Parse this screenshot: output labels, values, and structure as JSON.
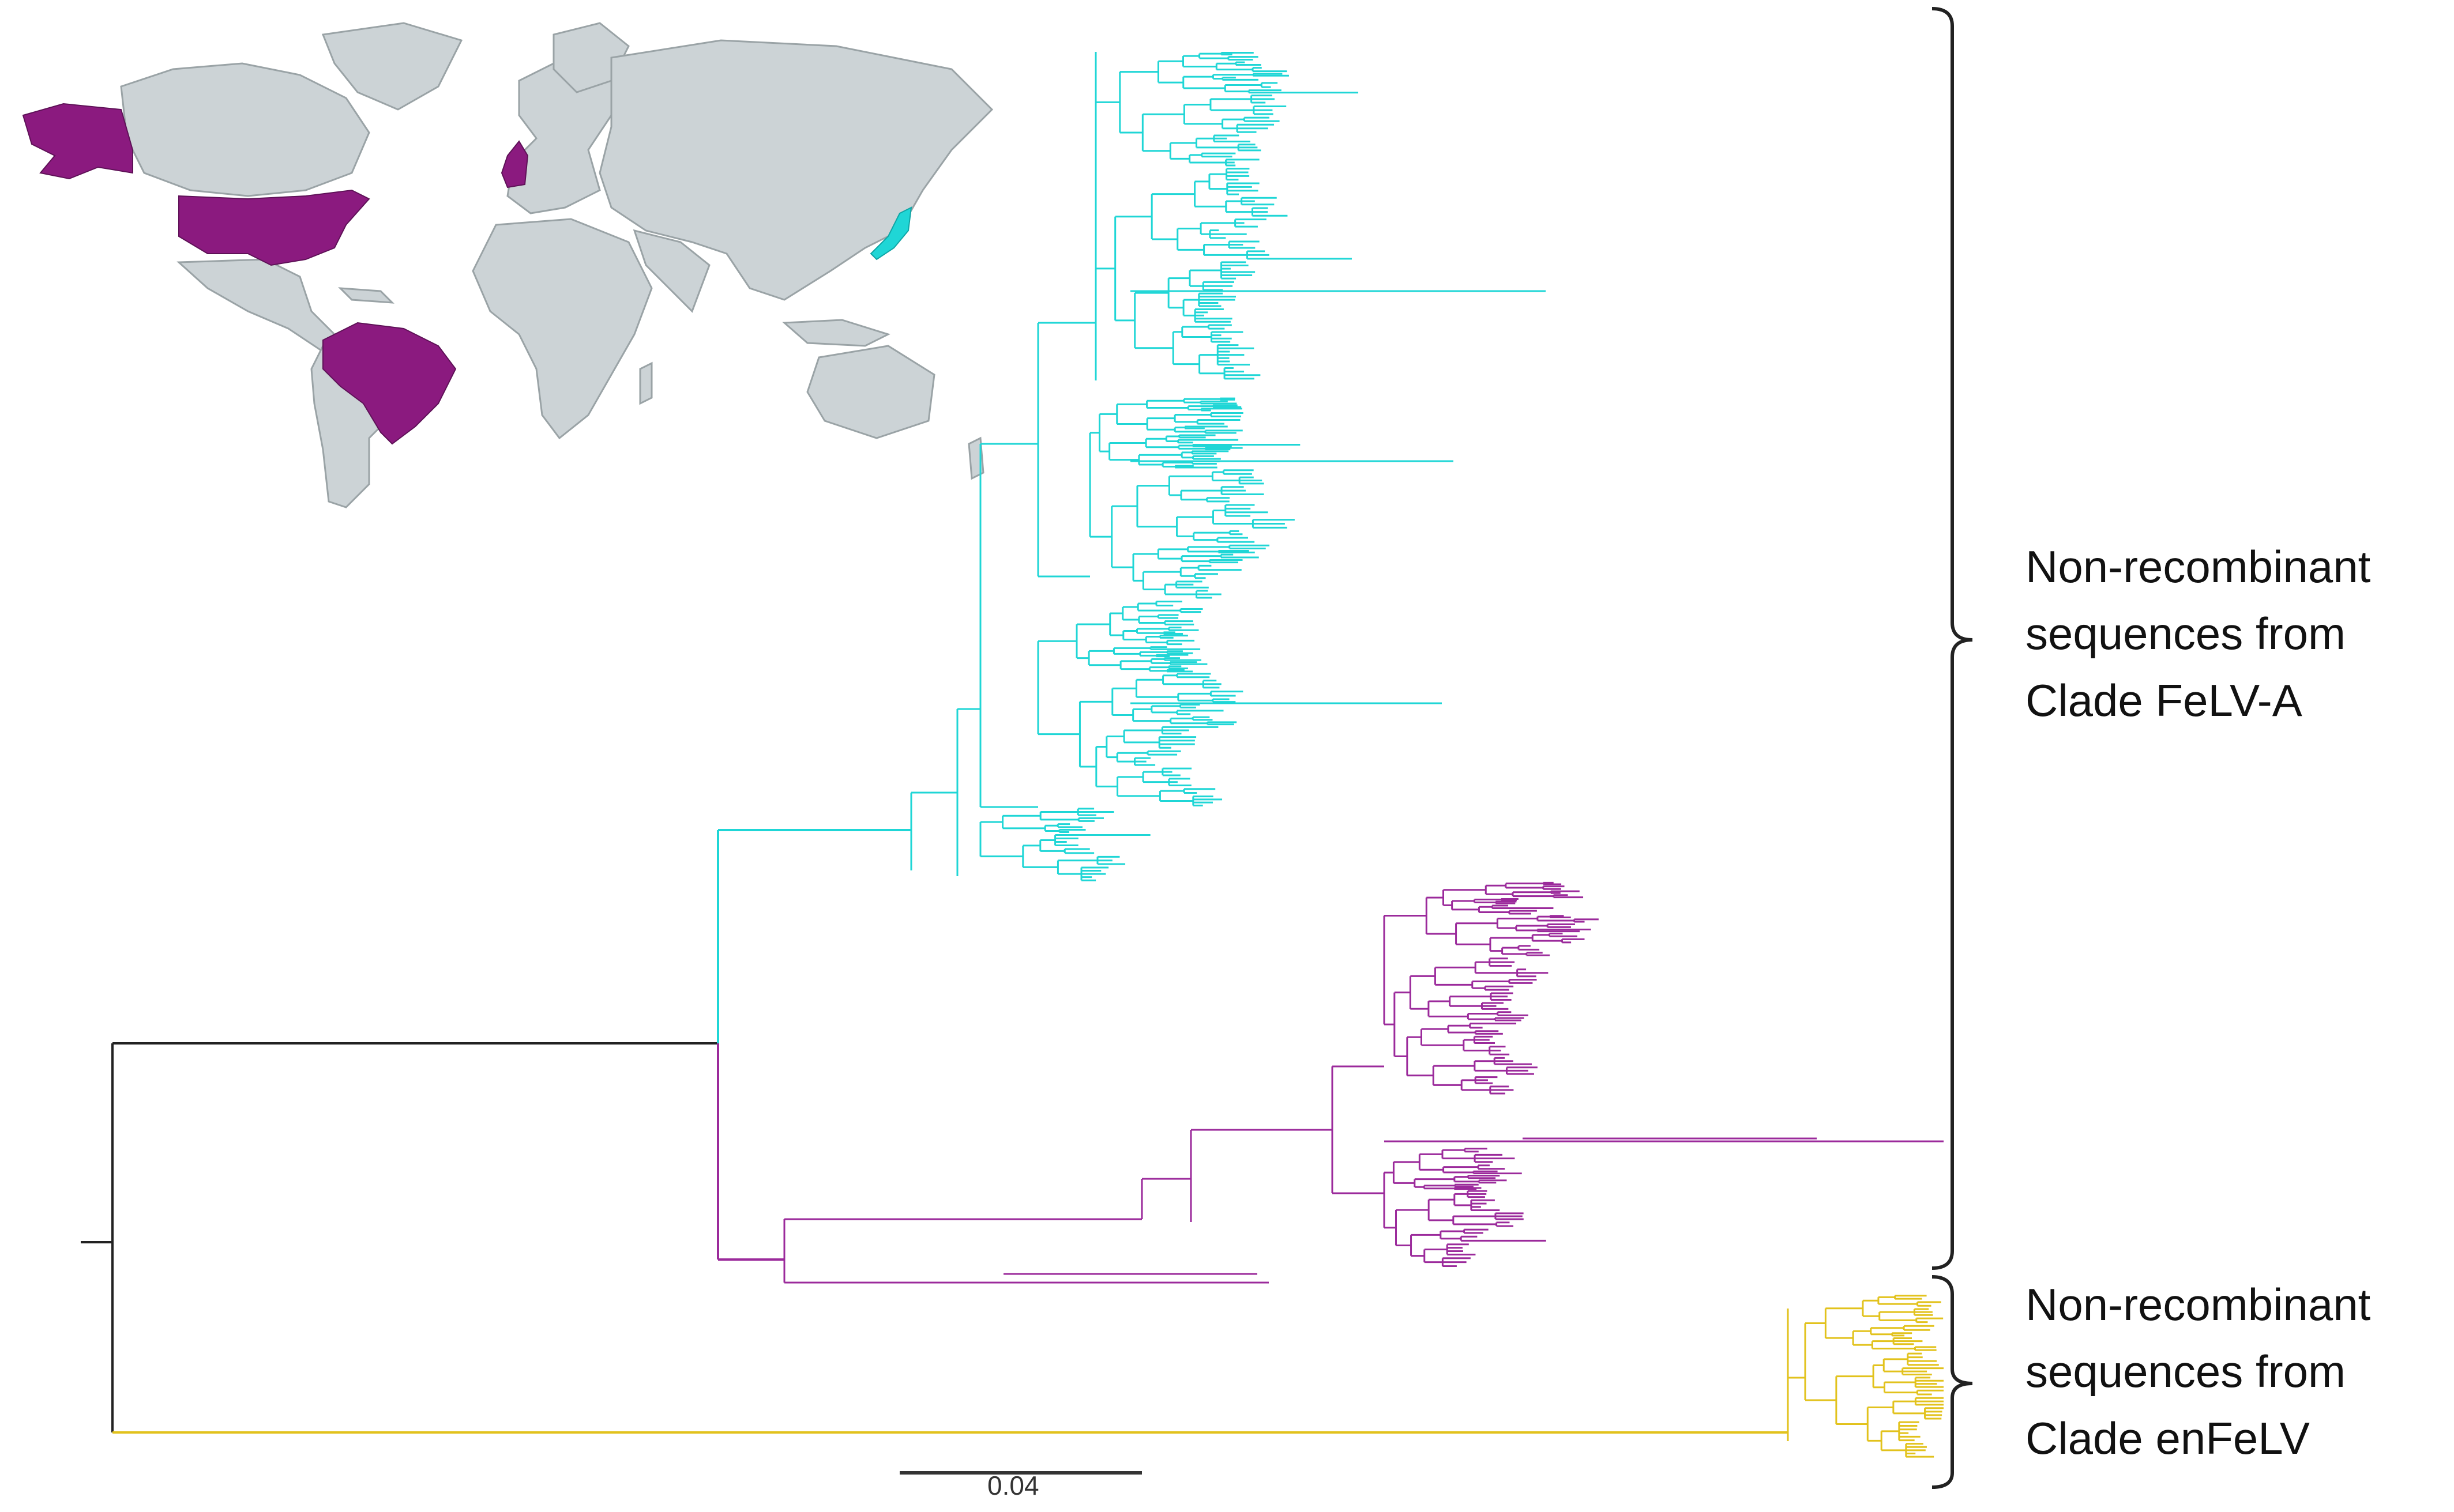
{
  "colors": {
    "clade_a_cyan": "#1fd6d6",
    "clade_a_purple": "#9b2a9b",
    "clade_enfelv": "#e2c21c",
    "root": "#222222",
    "map_land": "#ccd3d6",
    "map_highlight_purple": "#8b1a7f",
    "map_highlight_cyan": "#1fd6d6"
  },
  "map": {
    "highlighted_countries_purple": [
      "United States",
      "Brazil",
      "United Kingdom"
    ],
    "highlighted_countries_cyan": [
      "Japan"
    ]
  },
  "labels": {
    "clade_a": [
      "Non-recombinant",
      "sequences from",
      "Clade FeLV-A"
    ],
    "clade_enfelv": [
      "Non-recombinant",
      "sequences from",
      "Clade enFeLV"
    ]
  },
  "scale_bar": {
    "value": 0.04,
    "text": "0.04"
  }
}
